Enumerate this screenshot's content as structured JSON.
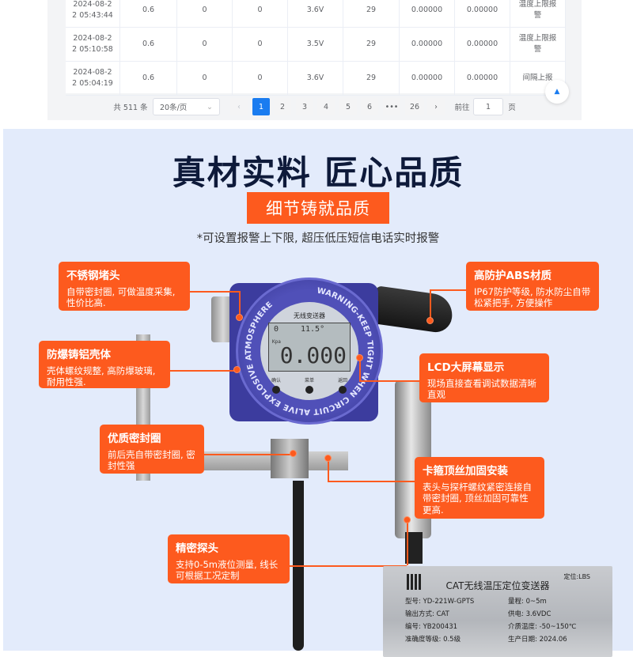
{
  "table": {
    "rows": [
      {
        "time": "2024-08-22 05:43:44",
        "c1": "0.6",
        "c2": "0",
        "c3": "0",
        "voltage": "3.6V",
        "c5": "29",
        "c6": "0.00000",
        "c7": "0.00000",
        "type": "温度上限报警"
      },
      {
        "time": "2024-08-22 05:10:58",
        "c1": "0.6",
        "c2": "0",
        "c3": "0",
        "voltage": "3.5V",
        "c5": "29",
        "c6": "0.00000",
        "c7": "0.00000",
        "type": "温度上限报警"
      },
      {
        "time": "2024-08-22 05:04:19",
        "c1": "0.6",
        "c2": "0",
        "c3": "0",
        "voltage": "3.6V",
        "c5": "29",
        "c6": "0.00000",
        "c7": "0.00000",
        "type": "间隔上报"
      }
    ]
  },
  "pagination": {
    "total": "共 511 条",
    "page_size": "20条/页",
    "prev": "‹",
    "pages": [
      "1",
      "2",
      "3",
      "4",
      "5",
      "6",
      "•••",
      "26"
    ],
    "next": "›",
    "goto_label": "前往",
    "goto_value": "1",
    "page_suffix": "页",
    "current": 1
  },
  "promo": {
    "title": "真材实料 匠心品质",
    "badge": "细节铸就品质",
    "subtitle": "*可设置报警上下限, 超压低压短信电话实时报警",
    "callouts": [
      {
        "title": "不锈钢堵头",
        "text": "自带密封圈, 可做温度采集, 性价比高."
      },
      {
        "title": "防爆铸铝壳体",
        "text": "壳体螺纹规整, 高防爆玻璃, 耐用性强."
      },
      {
        "title": "优质密封圈",
        "text": "前后壳自带密封圈, 密封性强"
      },
      {
        "title": "精密探头",
        "text": "支持0-5m液位测量, 线长可根据工况定制"
      },
      {
        "title": "高防护ABS材质",
        "text": "IP67防护等级, 防水防尘自带松紧把手, 方便操作"
      },
      {
        "title": "LCD大屏幕显示",
        "text": "现场直接查看调试数据清晰直观"
      },
      {
        "title": "卡箍顶丝加固安装",
        "text": "表头与探杆螺纹紧密连接自带密封圈, 顶丝加固可靠性更高."
      }
    ],
    "accent": "#fd5a1e",
    "device": {
      "label": "无线变送器",
      "ring_text": "WARNING-KEEP TIGHT WHEN CIRCUIT ALIVE EXPLOSIVE ATMOSPHERE",
      "lcd_top_left": "0",
      "lcd_top_mid": "11.5°",
      "lcd_main": "0.000",
      "lcd_unit": "Kpa",
      "buttons": [
        "确认",
        "菜单",
        "返回"
      ]
    },
    "plate": {
      "title": "CAT无线温压定位变送器",
      "tag": "定位:LBS",
      "fields": [
        "型号: YD-221W-GPTS",
        "量程: 0~5m",
        "输出方式: CAT",
        "供电: 3.6VDC",
        "编号: YB200431",
        "介质温度: -50~150℃",
        "准确度等级: 0.5级",
        "生产日期: 2024.06"
      ]
    }
  }
}
